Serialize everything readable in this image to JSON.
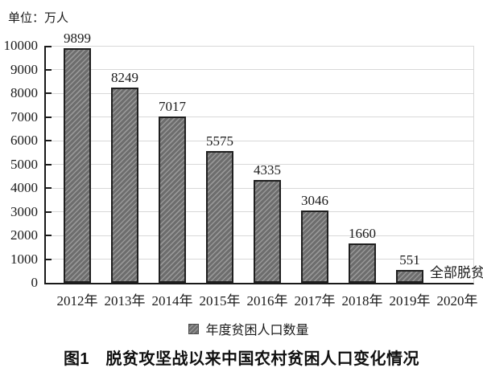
{
  "chart_data": {
    "type": "bar",
    "title": "图1　脱贫攻坚战以来中国农村贫困人口变化情况",
    "unit_label": "单位：万人",
    "categories": [
      "2012年",
      "2013年",
      "2014年",
      "2015年",
      "2016年",
      "2017年",
      "2018年",
      "2019年",
      "2020年"
    ],
    "values": [
      9899,
      8249,
      7017,
      5575,
      4335,
      3046,
      1660,
      551,
      0
    ],
    "value_labels": [
      "9899",
      "8249",
      "7017",
      "5575",
      "4335",
      "3046",
      "1660",
      "551",
      ""
    ],
    "annotation": {
      "category": "2020年",
      "text": "全部脱贫"
    },
    "legend_entries": [
      "年度贫困人口数量"
    ],
    "legend_position": "bottom",
    "xlabel": "",
    "ylabel": "",
    "ylim": [
      0,
      10000
    ],
    "yticks": [
      0,
      1000,
      2000,
      3000,
      4000,
      5000,
      6000,
      7000,
      8000,
      9000,
      10000
    ],
    "grid": true,
    "bar_color": "#6d6d6d",
    "bar_hatch_color": "#989898",
    "hatch": "/"
  }
}
